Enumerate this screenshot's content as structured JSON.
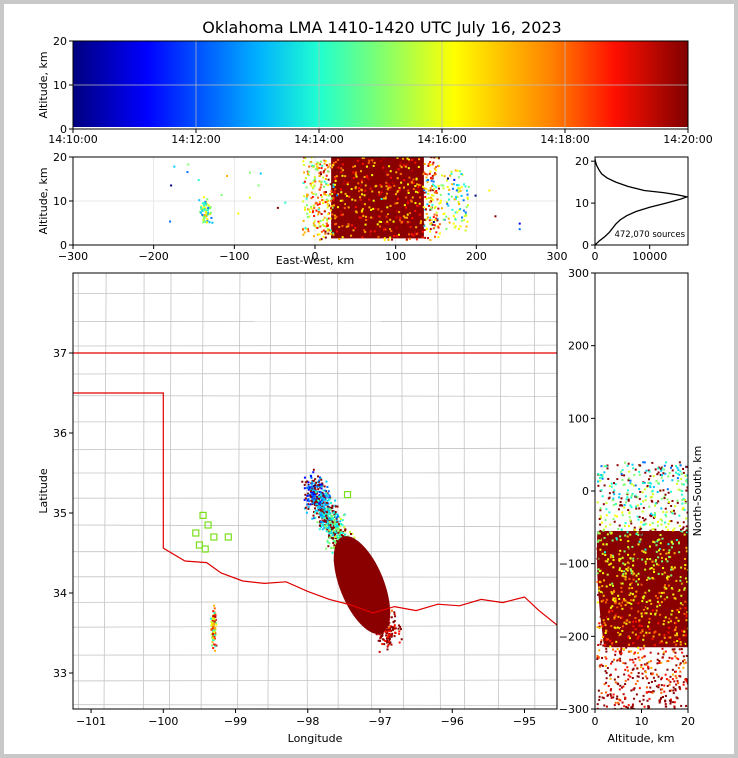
{
  "chart_data": [
    {
      "panel": "altitude-time",
      "type": "scatter",
      "title": "Oklahoma LMA 1410-1420 UTC July 16, 2023",
      "ylabel": "Altitude, km",
      "ylim": [
        0,
        20
      ],
      "yticks": [
        "0",
        "10",
        "20"
      ],
      "xticks": [
        "14:10:00",
        "14:12:00",
        "14:14:00",
        "14:16:00",
        "14:18:00",
        "14:20:00"
      ],
      "xlim": [
        "14:10:00",
        "14:20:00"
      ],
      "colormap": "jet, colored by time",
      "grid": true
    },
    {
      "panel": "altitude-east-west",
      "type": "scatter",
      "xlabel": "East-West, km",
      "ylabel": "Altitude, km",
      "xlim": [
        -300,
        300
      ],
      "ylim": [
        0,
        20
      ],
      "xticks": [
        "−300",
        "−200",
        "−100",
        "0",
        "100",
        "200",
        "300"
      ],
      "yticks": [
        "0",
        "10",
        "20"
      ],
      "grid": true
    },
    {
      "panel": "altitude-histogram",
      "type": "line",
      "annotation": "472,070 sources",
      "xlim": [
        0,
        17000
      ],
      "ylim": [
        0,
        21
      ],
      "xticks": [
        "0",
        "10000"
      ],
      "yticks": [
        "0",
        "10",
        "20"
      ],
      "points": [
        [
          0,
          0
        ],
        [
          800,
          1
        ],
        [
          1800,
          2
        ],
        [
          2600,
          3
        ],
        [
          3200,
          4
        ],
        [
          3800,
          5
        ],
        [
          4600,
          6
        ],
        [
          5800,
          7
        ],
        [
          7500,
          8
        ],
        [
          10000,
          9
        ],
        [
          13000,
          10
        ],
        [
          15800,
          11
        ],
        [
          16800,
          11.5
        ],
        [
          15000,
          12
        ],
        [
          12500,
          12.5
        ],
        [
          9000,
          13
        ],
        [
          6000,
          14
        ],
        [
          3800,
          15
        ],
        [
          2200,
          16
        ],
        [
          1200,
          17
        ],
        [
          700,
          18
        ],
        [
          300,
          19
        ],
        [
          60,
          20
        ],
        [
          0,
          20.6
        ]
      ]
    },
    {
      "panel": "plan-view-map",
      "type": "scatter",
      "xlabel": "Longitude",
      "ylabel": "Latitude",
      "xlim": [
        -101.25,
        -94.55
      ],
      "ylim": [
        32.55,
        38
      ],
      "xticks": [
        "−101",
        "−100",
        "−99",
        "−98",
        "−97",
        "−96",
        "−95"
      ],
      "yticks": [
        "33",
        "34",
        "35",
        "36",
        "37"
      ],
      "state_border_color": "#e00000",
      "county_line_color": "#c4c4c4",
      "station_marker_color": "#7ae01a"
    },
    {
      "panel": "north-south-altitude",
      "type": "scatter",
      "xlabel": "Altitude, km",
      "ylabel": "North-South, km",
      "xlim": [
        0,
        20
      ],
      "ylim": [
        -300,
        300
      ],
      "xticks": [
        "0",
        "10",
        "20"
      ],
      "yticks": [
        "−300",
        "−200",
        "−100",
        "0",
        "100",
        "200",
        "300"
      ]
    }
  ]
}
